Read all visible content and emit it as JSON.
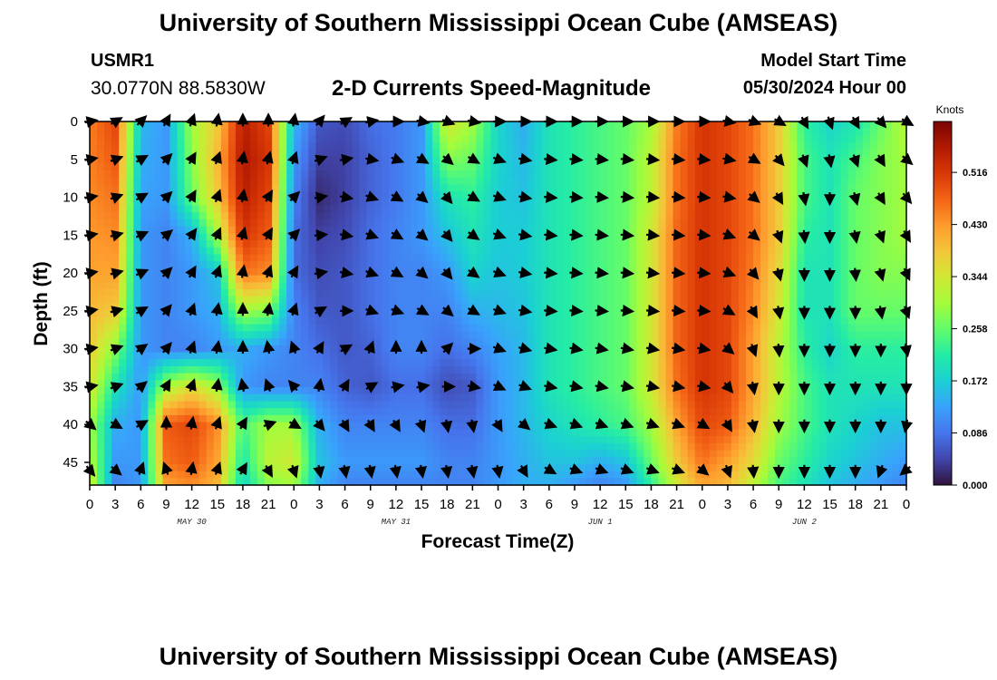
{
  "header": {
    "title": "University of Southern Mississippi Ocean Cube (AMSEAS)",
    "station": "USMR1",
    "coords": "30.0770N  88.5830W",
    "subtitle": "2-D Currents Speed-Magnitude",
    "model_start_label": "Model Start Time",
    "model_start_value": "05/30/2024 Hour 00"
  },
  "footer": {
    "title": "University of Southern Mississippi Ocean Cube (AMSEAS)"
  },
  "chart_data": {
    "type": "heatmap",
    "title": "2-D Currents Speed-Magnitude",
    "xlabel": "Forecast Time(Z)",
    "ylabel": "Depth (ft)",
    "x_ticks": [
      "0",
      "3",
      "6",
      "9",
      "12",
      "15",
      "18",
      "21",
      "0",
      "3",
      "6",
      "9",
      "12",
      "15",
      "18",
      "21",
      "0",
      "3",
      "6",
      "9",
      "12",
      "15",
      "18",
      "21",
      "0",
      "3",
      "6",
      "9",
      "12",
      "15",
      "18",
      "21",
      "0"
    ],
    "x_hours": [
      0,
      3,
      6,
      9,
      12,
      15,
      18,
      21,
      24,
      27,
      30,
      33,
      36,
      39,
      42,
      45,
      48,
      51,
      54,
      57,
      60,
      63,
      66,
      69,
      72,
      75,
      78,
      81,
      84,
      87,
      90,
      93,
      96
    ],
    "xlim": [
      0,
      96
    ],
    "y_ticks": [
      "0",
      "5",
      "10",
      "15",
      "20",
      "25",
      "30",
      "35",
      "40",
      "45"
    ],
    "y_values": [
      0,
      5,
      10,
      15,
      20,
      25,
      30,
      35,
      40,
      45
    ],
    "ylim": [
      0,
      48
    ],
    "day_labels": [
      {
        "hour": 12,
        "label": "MAY 30"
      },
      {
        "hour": 36,
        "label": "MAY 31"
      },
      {
        "hour": 60,
        "label": "JUN 1"
      },
      {
        "hour": 84,
        "label": "JUN 2"
      }
    ],
    "colorbar": {
      "unit": "Knots",
      "ticks": [
        "0.000",
        "0.086",
        "0.172",
        "0.258",
        "0.344",
        "0.430",
        "0.516"
      ],
      "tick_values": [
        0,
        0.086,
        0.172,
        0.258,
        0.344,
        0.43,
        0.516
      ],
      "range": [
        0,
        0.6
      ],
      "colors": [
        "#30123b",
        "#4145ab",
        "#4675ed",
        "#39a2fc",
        "#1bcfd4",
        "#24eca6",
        "#61fc6c",
        "#a4fc3b",
        "#d1e834",
        "#f3c63a",
        "#fe9b2d",
        "#f36315",
        "#d93806",
        "#b11901",
        "#7a0402"
      ]
    },
    "speed_grid_hours": [
      0,
      3,
      6,
      9,
      12,
      15,
      18,
      21,
      24,
      27,
      30,
      33,
      36,
      39,
      42,
      45,
      48,
      51,
      54,
      57,
      60,
      63,
      66,
      69,
      72,
      75,
      78,
      81,
      84,
      87,
      90,
      93,
      96
    ],
    "speed_grid_depths": [
      0,
      5,
      10,
      15,
      20,
      25,
      30,
      35,
      40,
      45,
      48
    ],
    "speed": [
      [
        0.45,
        0.5,
        0.15,
        0.12,
        0.3,
        0.38,
        0.55,
        0.5,
        0.15,
        0.06,
        0.05,
        0.08,
        0.09,
        0.12,
        0.35,
        0.3,
        0.18,
        0.14,
        0.2,
        0.22,
        0.24,
        0.26,
        0.3,
        0.45,
        0.52,
        0.5,
        0.46,
        0.38,
        0.22,
        0.18,
        0.2,
        0.26,
        0.32
      ],
      [
        0.45,
        0.48,
        0.14,
        0.12,
        0.28,
        0.4,
        0.56,
        0.52,
        0.12,
        0.04,
        0.04,
        0.07,
        0.09,
        0.12,
        0.28,
        0.26,
        0.18,
        0.15,
        0.2,
        0.22,
        0.24,
        0.26,
        0.32,
        0.46,
        0.52,
        0.5,
        0.46,
        0.38,
        0.24,
        0.2,
        0.24,
        0.28,
        0.3
      ],
      [
        0.44,
        0.46,
        0.13,
        0.12,
        0.26,
        0.38,
        0.55,
        0.5,
        0.1,
        0.02,
        0.04,
        0.07,
        0.09,
        0.12,
        0.2,
        0.22,
        0.17,
        0.16,
        0.2,
        0.22,
        0.24,
        0.26,
        0.32,
        0.46,
        0.52,
        0.5,
        0.46,
        0.38,
        0.24,
        0.2,
        0.26,
        0.28,
        0.3
      ],
      [
        0.43,
        0.44,
        0.12,
        0.1,
        0.14,
        0.3,
        0.52,
        0.48,
        0.08,
        0.04,
        0.05,
        0.08,
        0.1,
        0.12,
        0.16,
        0.2,
        0.17,
        0.17,
        0.2,
        0.22,
        0.24,
        0.26,
        0.34,
        0.47,
        0.52,
        0.5,
        0.46,
        0.38,
        0.22,
        0.2,
        0.26,
        0.28,
        0.3
      ],
      [
        0.42,
        0.42,
        0.12,
        0.1,
        0.12,
        0.16,
        0.46,
        0.44,
        0.08,
        0.05,
        0.06,
        0.08,
        0.1,
        0.1,
        0.12,
        0.18,
        0.16,
        0.17,
        0.2,
        0.22,
        0.24,
        0.26,
        0.34,
        0.47,
        0.52,
        0.5,
        0.45,
        0.36,
        0.2,
        0.2,
        0.26,
        0.28,
        0.28
      ],
      [
        0.4,
        0.38,
        0.12,
        0.1,
        0.12,
        0.14,
        0.3,
        0.28,
        0.1,
        0.06,
        0.06,
        0.08,
        0.1,
        0.1,
        0.1,
        0.14,
        0.15,
        0.16,
        0.2,
        0.22,
        0.24,
        0.26,
        0.34,
        0.47,
        0.52,
        0.5,
        0.44,
        0.34,
        0.2,
        0.2,
        0.26,
        0.26,
        0.26
      ],
      [
        0.38,
        0.28,
        0.12,
        0.1,
        0.1,
        0.12,
        0.14,
        0.12,
        0.1,
        0.08,
        0.06,
        0.07,
        0.1,
        0.1,
        0.08,
        0.1,
        0.13,
        0.15,
        0.2,
        0.22,
        0.24,
        0.26,
        0.34,
        0.47,
        0.52,
        0.5,
        0.42,
        0.32,
        0.22,
        0.18,
        0.22,
        0.22,
        0.22
      ],
      [
        0.35,
        0.2,
        0.12,
        0.3,
        0.36,
        0.3,
        0.12,
        0.1,
        0.1,
        0.1,
        0.07,
        0.06,
        0.08,
        0.08,
        0.05,
        0.06,
        0.12,
        0.15,
        0.2,
        0.22,
        0.24,
        0.26,
        0.34,
        0.46,
        0.52,
        0.5,
        0.42,
        0.32,
        0.24,
        0.2,
        0.2,
        0.2,
        0.2
      ],
      [
        0.3,
        0.14,
        0.12,
        0.48,
        0.5,
        0.44,
        0.24,
        0.3,
        0.3,
        0.14,
        0.1,
        0.1,
        0.1,
        0.1,
        0.08,
        0.08,
        0.12,
        0.15,
        0.18,
        0.2,
        0.22,
        0.24,
        0.3,
        0.42,
        0.5,
        0.48,
        0.4,
        0.3,
        0.24,
        0.2,
        0.18,
        0.16,
        0.16
      ],
      [
        0.32,
        0.12,
        0.12,
        0.46,
        0.48,
        0.42,
        0.2,
        0.32,
        0.34,
        0.16,
        0.12,
        0.12,
        0.12,
        0.12,
        0.1,
        0.1,
        0.12,
        0.14,
        0.16,
        0.16,
        0.14,
        0.16,
        0.26,
        0.38,
        0.46,
        0.42,
        0.36,
        0.26,
        0.22,
        0.18,
        0.16,
        0.14,
        0.12
      ],
      [
        0.34,
        0.1,
        0.12,
        0.42,
        0.44,
        0.4,
        0.18,
        0.28,
        0.3,
        0.14,
        0.1,
        0.1,
        0.1,
        0.1,
        0.1,
        0.1,
        0.12,
        0.14,
        0.14,
        0.12,
        0.1,
        0.12,
        0.22,
        0.34,
        0.42,
        0.4,
        0.32,
        0.24,
        0.2,
        0.16,
        0.14,
        0.12,
        0.1
      ]
    ],
    "arrow_hours": [
      0,
      3,
      6,
      9,
      12,
      15,
      18,
      21,
      24,
      27,
      30,
      33,
      36,
      39,
      42,
      45,
      48,
      51,
      54,
      57,
      60,
      63,
      66,
      69,
      72,
      75,
      78,
      81,
      84,
      87,
      90,
      93,
      96
    ],
    "arrow_depths": [
      0,
      5,
      10,
      15,
      20,
      25,
      30,
      35,
      40,
      46
    ],
    "arrow_directions_deg": [
      [
        80,
        60,
        45,
        30,
        20,
        10,
        0,
        0,
        10,
        40,
        60,
        80,
        90,
        100,
        110,
        100,
        90,
        90,
        90,
        90,
        90,
        90,
        90,
        90,
        90,
        100,
        110,
        120,
        150,
        160,
        150,
        140,
        120
      ],
      [
        80,
        70,
        60,
        45,
        30,
        20,
        10,
        15,
        20,
        70,
        80,
        100,
        110,
        120,
        130,
        120,
        110,
        100,
        95,
        95,
        95,
        95,
        95,
        95,
        95,
        100,
        120,
        140,
        160,
        170,
        160,
        150,
        130
      ],
      [
        80,
        70,
        60,
        45,
        30,
        20,
        10,
        30,
        45,
        80,
        100,
        110,
        120,
        130,
        140,
        120,
        110,
        100,
        95,
        95,
        95,
        95,
        95,
        95,
        95,
        100,
        130,
        150,
        170,
        180,
        165,
        150,
        140
      ],
      [
        80,
        75,
        65,
        50,
        35,
        25,
        15,
        30,
        45,
        85,
        100,
        110,
        120,
        130,
        140,
        125,
        110,
        100,
        95,
        95,
        95,
        95,
        95,
        95,
        95,
        110,
        130,
        160,
        175,
        180,
        170,
        160,
        150
      ],
      [
        80,
        75,
        65,
        45,
        30,
        20,
        10,
        20,
        30,
        80,
        100,
        110,
        120,
        130,
        140,
        125,
        110,
        100,
        95,
        95,
        95,
        95,
        95,
        95,
        95,
        110,
        140,
        165,
        180,
        180,
        175,
        165,
        155
      ],
      [
        80,
        75,
        60,
        40,
        20,
        10,
        0,
        10,
        20,
        60,
        90,
        110,
        110,
        120,
        130,
        120,
        110,
        100,
        95,
        95,
        95,
        95,
        95,
        95,
        95,
        120,
        150,
        170,
        180,
        180,
        180,
        170,
        160
      ],
      [
        80,
        70,
        55,
        40,
        20,
        10,
        0,
        -10,
        -20,
        30,
        60,
        20,
        0,
        0,
        45,
        90,
        110,
        105,
        100,
        100,
        100,
        100,
        100,
        100,
        100,
        130,
        160,
        175,
        180,
        180,
        180,
        180,
        170
      ],
      [
        80,
        70,
        50,
        30,
        20,
        10,
        -10,
        -20,
        -40,
        10,
        30,
        60,
        80,
        80,
        90,
        100,
        115,
        110,
        100,
        100,
        100,
        100,
        100,
        100,
        100,
        140,
        170,
        180,
        180,
        180,
        180,
        180,
        180
      ],
      [
        130,
        120,
        60,
        0,
        10,
        20,
        30,
        70,
        120,
        140,
        150,
        150,
        150,
        160,
        170,
        170,
        150,
        130,
        110,
        110,
        110,
        110,
        110,
        110,
        120,
        150,
        170,
        180,
        180,
        180,
        180,
        180,
        190
      ],
      [
        140,
        130,
        20,
        -20,
        10,
        20,
        30,
        150,
        160,
        170,
        170,
        170,
        170,
        170,
        170,
        170,
        170,
        150,
        120,
        110,
        110,
        110,
        110,
        110,
        130,
        160,
        175,
        180,
        180,
        180,
        180,
        200,
        230
      ]
    ]
  }
}
